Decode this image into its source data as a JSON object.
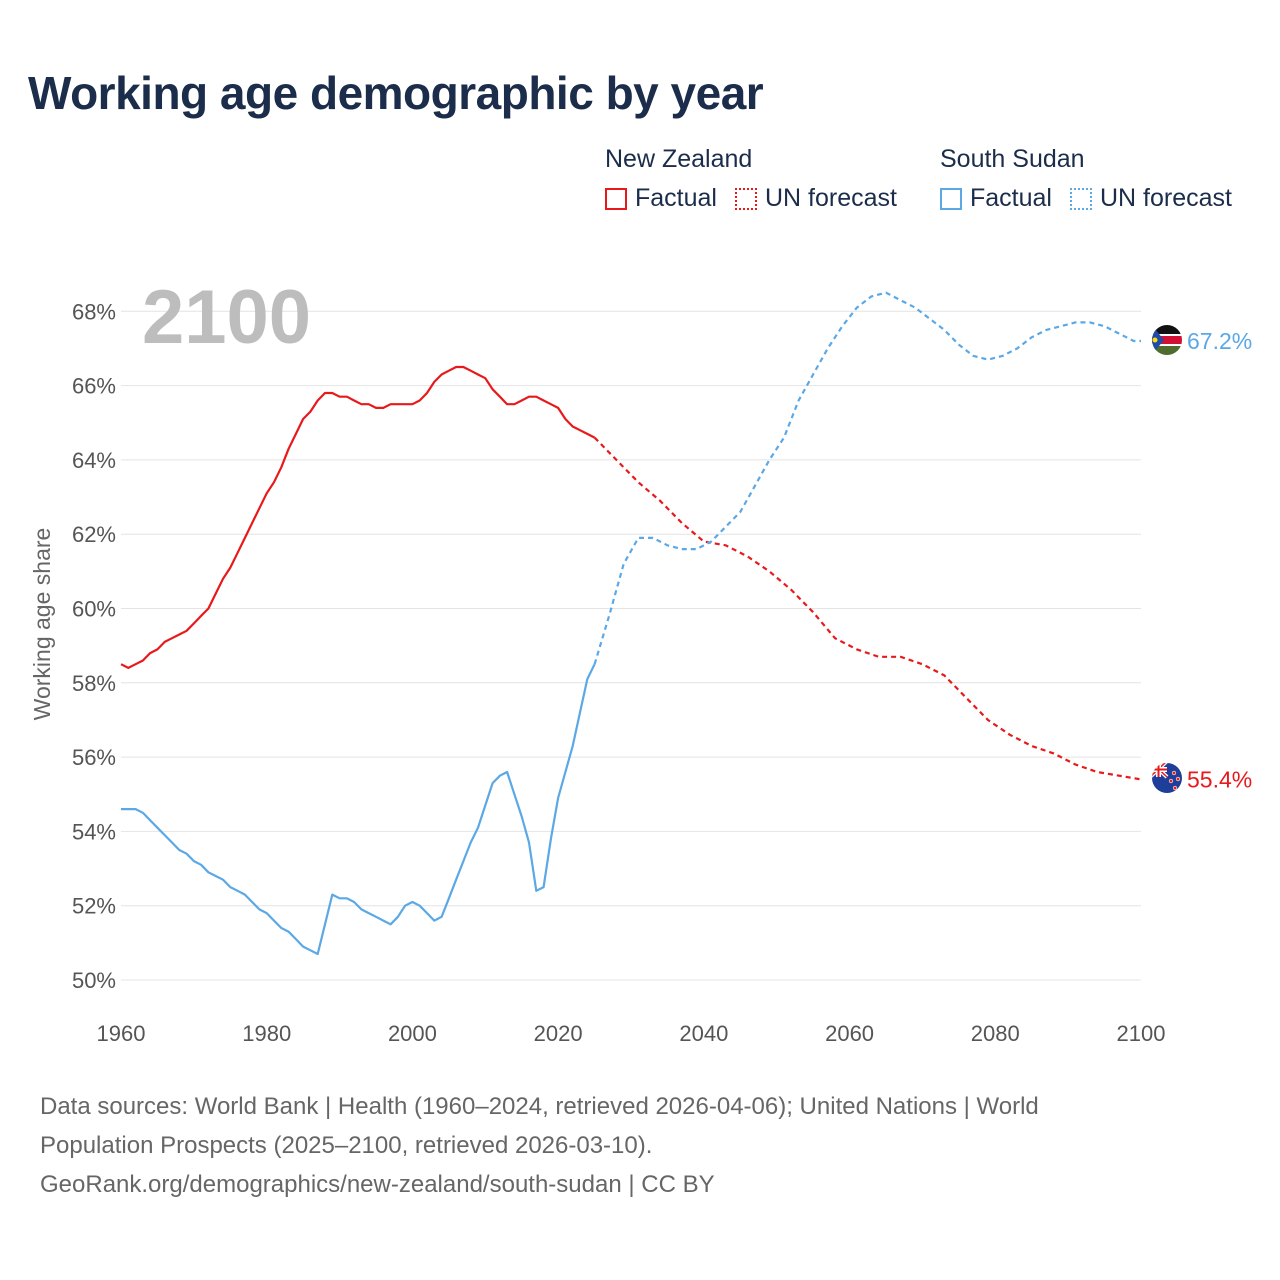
{
  "title": "Working age demographic by year",
  "legend": {
    "groups": [
      {
        "name": "New Zealand",
        "factual": "Factual",
        "forecast": "UN forecast",
        "color": "#e8191b"
      },
      {
        "name": "South Sudan",
        "factual": "Factual",
        "forecast": "UN forecast",
        "color": "#5ba8e6"
      }
    ]
  },
  "year_overlay": "2100",
  "footer": {
    "line1": "Data sources: World Bank | Health (1960–2024, retrieved 2026-04-06); United Nations | World",
    "line2": "Population Prospects (2025–2100, retrieved 2026-03-10).",
    "line3": "GeoRank.org/demographics/new-zealand/south-sudan | CC BY"
  },
  "flag_icons": [
    "south-sudan-flag-icon",
    "new-zealand-flag-icon"
  ],
  "chart_data": {
    "type": "line",
    "title": "Working age demographic by year",
    "xlabel": "",
    "ylabel": "Working age share",
    "xlim": [
      1960,
      2100
    ],
    "ylim": [
      49,
      69.5
    ],
    "x_ticks": [
      1960,
      1980,
      2000,
      2020,
      2040,
      2060,
      2080,
      2100
    ],
    "y_ticks": [
      50,
      52,
      54,
      56,
      58,
      60,
      62,
      64,
      66,
      68
    ],
    "y_tick_labels": [
      "50%",
      "52%",
      "54%",
      "56%",
      "58%",
      "60%",
      "62%",
      "64%",
      "66%",
      "68%"
    ],
    "grid": true,
    "series": [
      {
        "name": "New Zealand",
        "color": "#e8191b",
        "end_label": "55.4%",
        "factual": {
          "x": [
            1960,
            1961,
            1962,
            1963,
            1964,
            1965,
            1966,
            1967,
            1968,
            1969,
            1970,
            1971,
            1972,
            1973,
            1974,
            1975,
            1976,
            1977,
            1978,
            1979,
            1980,
            1981,
            1982,
            1983,
            1984,
            1985,
            1986,
            1987,
            1988,
            1989,
            1990,
            1991,
            1992,
            1993,
            1994,
            1995,
            1996,
            1997,
            1998,
            1999,
            2000,
            2001,
            2002,
            2003,
            2004,
            2005,
            2006,
            2007,
            2008,
            2009,
            2010,
            2011,
            2012,
            2013,
            2014,
            2015,
            2016,
            2017,
            2018,
            2019,
            2020,
            2021,
            2022,
            2023,
            2024,
            2025
          ],
          "y": [
            58.5,
            58.4,
            58.5,
            58.6,
            58.8,
            58.9,
            59.1,
            59.2,
            59.3,
            59.4,
            59.6,
            59.8,
            60.0,
            60.4,
            60.8,
            61.1,
            61.5,
            61.9,
            62.3,
            62.7,
            63.1,
            63.4,
            63.8,
            64.3,
            64.7,
            65.1,
            65.3,
            65.6,
            65.8,
            65.8,
            65.7,
            65.7,
            65.6,
            65.5,
            65.5,
            65.4,
            65.4,
            65.5,
            65.5,
            65.5,
            65.5,
            65.6,
            65.8,
            66.1,
            66.3,
            66.4,
            66.5,
            66.5,
            66.4,
            66.3,
            66.2,
            65.9,
            65.7,
            65.5,
            65.5,
            65.6,
            65.7,
            65.7,
            65.6,
            65.5,
            65.4,
            65.1,
            64.9,
            64.8,
            64.7,
            64.6
          ]
        },
        "forecast": {
          "x": [
            2025,
            2028,
            2031,
            2034,
            2037,
            2040,
            2043,
            2046,
            2049,
            2052,
            2055,
            2058,
            2061,
            2064,
            2067,
            2070,
            2073,
            2076,
            2079,
            2082,
            2085,
            2088,
            2091,
            2094,
            2097,
            2100
          ],
          "y": [
            64.6,
            64.0,
            63.4,
            62.9,
            62.3,
            61.8,
            61.7,
            61.4,
            61.0,
            60.5,
            59.9,
            59.2,
            58.9,
            58.7,
            58.7,
            58.5,
            58.2,
            57.6,
            57.0,
            56.6,
            56.3,
            56.1,
            55.8,
            55.6,
            55.5,
            55.4
          ]
        }
      },
      {
        "name": "South Sudan",
        "color": "#5ba8e6",
        "end_label": "67.2%",
        "factual": {
          "x": [
            1960,
            1961,
            1962,
            1963,
            1964,
            1965,
            1966,
            1967,
            1968,
            1969,
            1970,
            1971,
            1972,
            1973,
            1974,
            1975,
            1976,
            1977,
            1978,
            1979,
            1980,
            1981,
            1982,
            1983,
            1984,
            1985,
            1986,
            1987,
            1988,
            1989,
            1990,
            1991,
            1992,
            1993,
            1994,
            1995,
            1996,
            1997,
            1998,
            1999,
            2000,
            2001,
            2002,
            2003,
            2004,
            2005,
            2006,
            2007,
            2008,
            2009,
            2010,
            2011,
            2012,
            2013,
            2014,
            2015,
            2016,
            2017,
            2018,
            2019,
            2020,
            2021,
            2022,
            2023,
            2024,
            2025
          ],
          "y": [
            54.6,
            54.6,
            54.6,
            54.5,
            54.3,
            54.1,
            53.9,
            53.7,
            53.5,
            53.4,
            53.2,
            53.1,
            52.9,
            52.8,
            52.7,
            52.5,
            52.4,
            52.3,
            52.1,
            51.9,
            51.8,
            51.6,
            51.4,
            51.3,
            51.1,
            50.9,
            50.8,
            50.7,
            51.5,
            52.3,
            52.2,
            52.2,
            52.1,
            51.9,
            51.8,
            51.7,
            51.6,
            51.5,
            51.7,
            52.0,
            52.1,
            52.0,
            51.8,
            51.6,
            51.7,
            52.2,
            52.7,
            53.2,
            53.7,
            54.1,
            54.7,
            55.3,
            55.5,
            55.6,
            55.0,
            54.4,
            53.7,
            52.4,
            52.5,
            53.8,
            54.9,
            55.6,
            56.3,
            57.2,
            58.1,
            58.5
          ]
        },
        "forecast": {
          "x": [
            2025,
            2027,
            2029,
            2031,
            2033,
            2035,
            2037,
            2039,
            2041,
            2043,
            2045,
            2047,
            2049,
            2051,
            2053,
            2055,
            2057,
            2059,
            2061,
            2063,
            2065,
            2067,
            2069,
            2071,
            2073,
            2075,
            2077,
            2079,
            2081,
            2083,
            2085,
            2087,
            2089,
            2091,
            2093,
            2095,
            2097,
            2099,
            2100
          ],
          "y": [
            58.5,
            59.8,
            61.2,
            61.9,
            61.9,
            61.7,
            61.6,
            61.6,
            61.8,
            62.2,
            62.6,
            63.3,
            64.0,
            64.6,
            65.6,
            66.3,
            67.0,
            67.6,
            68.1,
            68.4,
            68.5,
            68.3,
            68.1,
            67.8,
            67.5,
            67.1,
            66.8,
            66.7,
            66.8,
            67.0,
            67.3,
            67.5,
            67.6,
            67.7,
            67.7,
            67.6,
            67.4,
            67.2,
            67.2
          ]
        }
      }
    ]
  }
}
